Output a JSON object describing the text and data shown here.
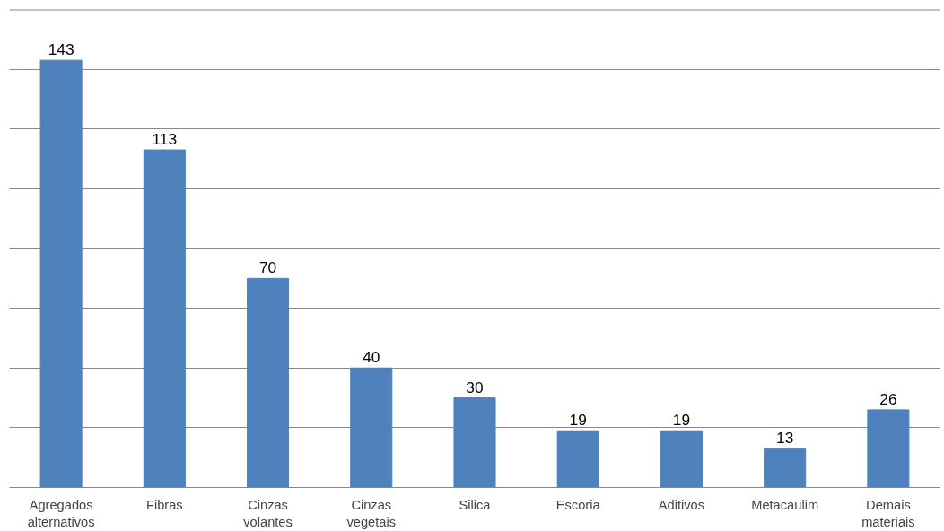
{
  "chart_data": {
    "type": "bar",
    "categories": [
      "Agregados alternativos",
      "Fibras",
      "Cinzas volantes",
      "Cinzas vegetais",
      "Silica",
      "Escoria",
      "Aditivos",
      "Metacaulim",
      "Demais materiais"
    ],
    "values": [
      143,
      113,
      70,
      40,
      30,
      19,
      19,
      13,
      26
    ],
    "color": "#4f81bd",
    "ylim": [
      0,
      160
    ],
    "yticks": [
      {
        "value": 0,
        "label": null
      },
      {
        "value": 20,
        "label": null
      },
      {
        "value": 40,
        "label": null
      },
      {
        "value": 60,
        "label": null
      },
      {
        "value": 80,
        "label": null
      },
      {
        "value": 100,
        "label": null
      },
      {
        "value": 120,
        "label": null
      },
      {
        "value": 140,
        "label": null
      },
      {
        "value": 160,
        "label": null
      }
    ],
    "grid": "y",
    "tick_labels": "x",
    "data_labels": true
  }
}
